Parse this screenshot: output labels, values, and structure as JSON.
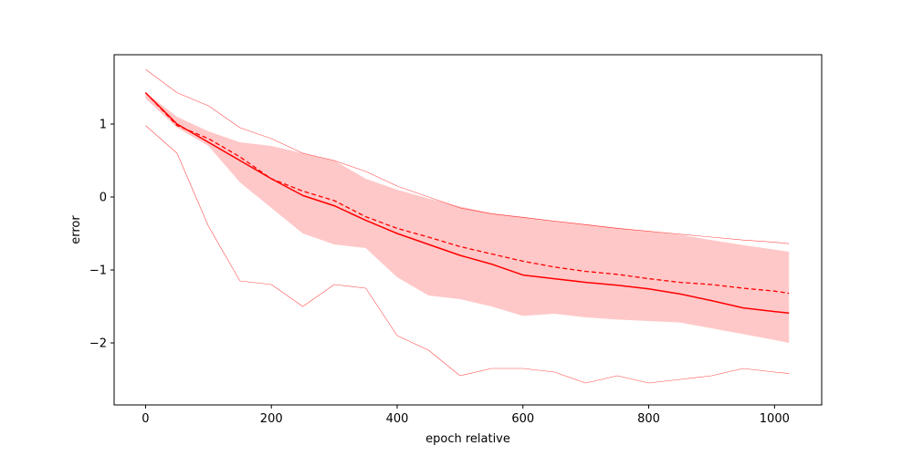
{
  "chart_data": {
    "type": "line",
    "title": "",
    "xlabel": "epoch relative",
    "ylabel": "error",
    "xlim": [
      -50,
      1075
    ],
    "ylim": [
      -2.85,
      1.95
    ],
    "grid": false,
    "xticks": [
      0,
      200,
      400,
      600,
      800,
      1000
    ],
    "xtick_labels": [
      "0",
      "200",
      "400",
      "600",
      "800",
      "1000"
    ],
    "yticks": [
      -2,
      -1,
      0,
      1
    ],
    "ytick_labels": [
      "−2",
      "−1",
      "0",
      "1"
    ],
    "color": "#ff0000",
    "band_color": "#ffc8c8",
    "x": [
      0,
      50,
      100,
      150,
      200,
      250,
      300,
      350,
      400,
      450,
      500,
      550,
      600,
      650,
      700,
      750,
      800,
      850,
      900,
      950,
      1000,
      1023
    ],
    "series": [
      {
        "style": "solid",
        "values": [
          1.43,
          1.0,
          0.75,
          0.5,
          0.25,
          0.02,
          -0.12,
          -0.32,
          -0.5,
          -0.65,
          -0.8,
          -0.92,
          -1.07,
          -1.12,
          -1.17,
          -1.21,
          -1.26,
          -1.33,
          -1.42,
          -1.52,
          -1.57,
          -1.59
        ]
      },
      {
        "style": "dashed",
        "values": [
          1.43,
          0.98,
          0.8,
          0.55,
          0.25,
          0.08,
          -0.05,
          -0.27,
          -0.43,
          -0.55,
          -0.68,
          -0.78,
          -0.88,
          -0.96,
          -1.02,
          -1.06,
          -1.12,
          -1.17,
          -1.2,
          -1.25,
          -1.29,
          -1.32
        ]
      },
      {
        "style": "thin",
        "values": [
          1.75,
          1.43,
          1.25,
          0.95,
          0.8,
          0.6,
          0.5,
          0.35,
          0.15,
          0.0,
          -0.15,
          -0.23,
          -0.28,
          -0.33,
          -0.38,
          -0.43,
          -0.47,
          -0.51,
          -0.55,
          -0.59,
          -0.62,
          -0.64
        ]
      },
      {
        "style": "thin",
        "values": [
          0.98,
          0.6,
          -0.4,
          -1.15,
          -1.2,
          -1.5,
          -1.2,
          -1.25,
          -1.9,
          -2.1,
          -2.45,
          -2.35,
          -2.35,
          -2.4,
          -2.55,
          -2.45,
          -2.55,
          -2.5,
          -2.45,
          -2.35,
          -2.4,
          -2.42
        ]
      }
    ],
    "band": {
      "upper": [
        1.43,
        1.1,
        0.9,
        0.75,
        0.7,
        0.6,
        0.5,
        0.25,
        0.1,
        -0.02,
        -0.13,
        -0.22,
        -0.27,
        -0.33,
        -0.37,
        -0.42,
        -0.47,
        -0.52,
        -0.59,
        -0.66,
        -0.72,
        -0.75
      ],
      "lower": [
        1.35,
        0.95,
        0.7,
        0.2,
        -0.15,
        -0.5,
        -0.65,
        -0.7,
        -1.1,
        -1.35,
        -1.4,
        -1.5,
        -1.63,
        -1.6,
        -1.65,
        -1.68,
        -1.7,
        -1.72,
        -1.8,
        -1.88,
        -1.96,
        -2.0
      ]
    }
  }
}
